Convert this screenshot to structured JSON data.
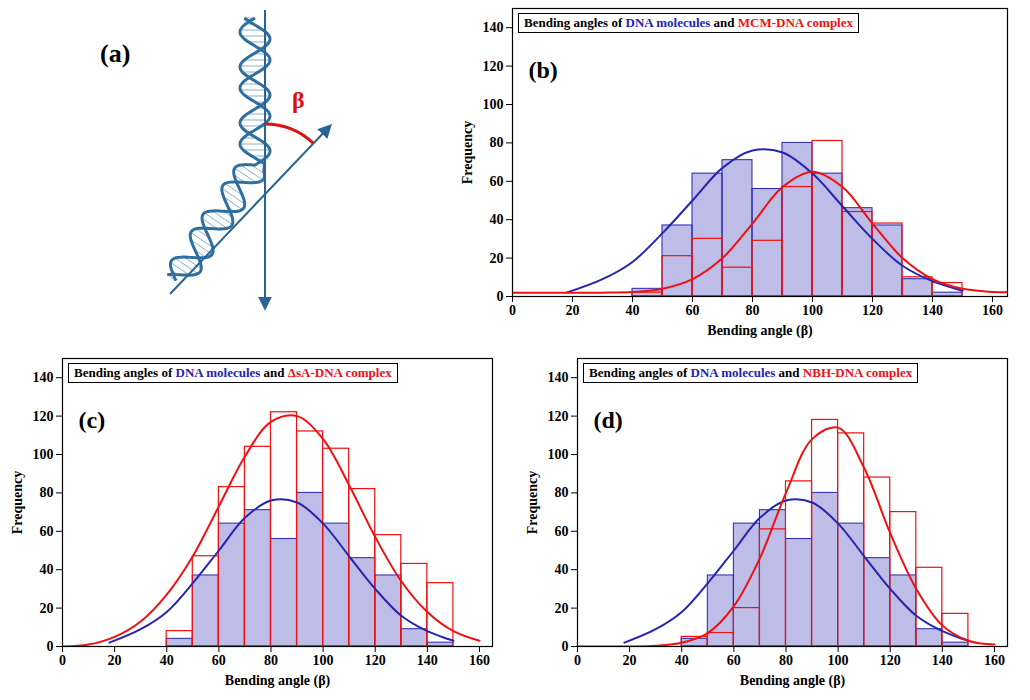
{
  "diagram": {
    "label": "(a)",
    "angle_label": "β"
  },
  "chart_data": [
    {
      "type": "histogram",
      "panel": "(b)",
      "title": "Bending angles of DNA molecules and MCM-DNA complex",
      "x_label": "Bending angle (β)",
      "y_label": "Frequency",
      "xlim": [
        0,
        165
      ],
      "xticks": [
        0,
        20,
        40,
        60,
        80,
        100,
        120,
        140,
        160
      ],
      "ylim": [
        0,
        150
      ],
      "yticks": [
        0,
        20,
        40,
        60,
        80,
        100,
        120,
        140
      ],
      "bins": [
        40,
        50,
        60,
        70,
        80,
        90,
        100,
        110,
        120,
        130,
        140,
        150
      ],
      "series": [
        {
          "name": "DNA molecules",
          "color": "#2525b0",
          "values": [
            4,
            37,
            64,
            71,
            56,
            80,
            64,
            46,
            37,
            9,
            2
          ],
          "fit_x": [
            18,
            30,
            40,
            50,
            60,
            70,
            80,
            90,
            100,
            110,
            120,
            130,
            140,
            150
          ],
          "fit_values": [
            2,
            9,
            18,
            33,
            50,
            67,
            76,
            75,
            64,
            47,
            30,
            16,
            8,
            3
          ]
        },
        {
          "name": "MCM-DNA complex",
          "color": "#ee1111",
          "values": [
            2,
            21,
            30,
            15,
            29,
            57,
            81,
            44,
            38,
            10,
            7
          ],
          "fit_x": [
            0,
            10,
            20,
            30,
            40,
            50,
            60,
            70,
            80,
            90,
            100,
            110,
            120,
            130,
            140,
            150,
            160,
            165
          ],
          "fit_values": [
            2,
            2,
            2,
            2,
            2.3,
            4,
            9,
            20,
            38,
            57,
            65,
            57,
            38,
            20,
            9,
            4,
            2.4,
            2.2
          ]
        }
      ]
    },
    {
      "type": "histogram",
      "panel": "(c)",
      "title": "Bending angles of DNA molecules and ΔsA-DNA complex",
      "x_label": "Bending angle (β)",
      "y_label": "Frequency",
      "xlim": [
        0,
        165
      ],
      "xticks": [
        0,
        20,
        40,
        60,
        80,
        100,
        120,
        140,
        160
      ],
      "ylim": [
        0,
        150
      ],
      "yticks": [
        0,
        20,
        40,
        60,
        80,
        100,
        120,
        140
      ],
      "bins": [
        40,
        50,
        60,
        70,
        80,
        90,
        100,
        110,
        120,
        130,
        140,
        150
      ],
      "series": [
        {
          "name": "DNA molecules",
          "color": "#2525b0",
          "values": [
            4,
            37,
            64,
            71,
            56,
            80,
            64,
            46,
            37,
            9,
            2
          ],
          "fit_x": [
            18,
            30,
            40,
            50,
            60,
            70,
            80,
            90,
            100,
            110,
            120,
            130,
            140,
            150
          ],
          "fit_values": [
            2,
            9,
            18,
            33,
            50,
            67,
            76,
            75,
            64,
            47,
            30,
            16,
            8,
            3
          ]
        },
        {
          "name": "ΔsA-DNA complex",
          "color": "#ee1111",
          "values": [
            8,
            47,
            83,
            104,
            122,
            112,
            103,
            82,
            58,
            43,
            33
          ],
          "fit_x": [
            0,
            10,
            20,
            30,
            40,
            50,
            60,
            70,
            80,
            90,
            100,
            110,
            120,
            130,
            140,
            150,
            160
          ],
          "fit_values": [
            0,
            1,
            5,
            13,
            27,
            47,
            73,
            99,
            117,
            120,
            108,
            84,
            57,
            34,
            18,
            8,
            3
          ]
        }
      ]
    },
    {
      "type": "histogram",
      "panel": "(d)",
      "title": "Bending angles of DNA molecules and NBH-DNA complex",
      "x_label": "Bending angle (β)",
      "y_label": "Frequency",
      "xlim": [
        0,
        165
      ],
      "xticks": [
        0,
        20,
        40,
        60,
        80,
        100,
        120,
        140,
        160
      ],
      "ylim": [
        0,
        150
      ],
      "yticks": [
        0,
        20,
        40,
        60,
        80,
        100,
        120,
        140
      ],
      "bins": [
        40,
        50,
        60,
        70,
        80,
        90,
        100,
        110,
        120,
        130,
        140,
        150
      ],
      "series": [
        {
          "name": "DNA molecules",
          "color": "#2525b0",
          "values": [
            4,
            37,
            64,
            71,
            56,
            80,
            64,
            46,
            37,
            9,
            2
          ],
          "fit_x": [
            18,
            30,
            40,
            50,
            60,
            70,
            80,
            90,
            100,
            110,
            120,
            130,
            140,
            150
          ],
          "fit_values": [
            2,
            9,
            18,
            33,
            50,
            67,
            76,
            75,
            64,
            47,
            30,
            16,
            8,
            3
          ]
        },
        {
          "name": "NBH-DNA complex",
          "color": "#ee1111",
          "values": [
            5,
            7,
            20,
            61,
            86,
            118,
            111,
            88,
            70,
            41,
            17
          ],
          "fit_x": [
            0,
            10,
            20,
            30,
            40,
            50,
            60,
            70,
            80,
            90,
            100,
            110,
            120,
            130,
            140,
            150,
            160
          ],
          "fit_values": [
            0,
            0,
            0,
            0.4,
            2,
            7,
            21,
            46,
            80,
            108,
            114,
            93,
            59,
            30,
            11,
            3,
            1
          ]
        }
      ]
    }
  ]
}
